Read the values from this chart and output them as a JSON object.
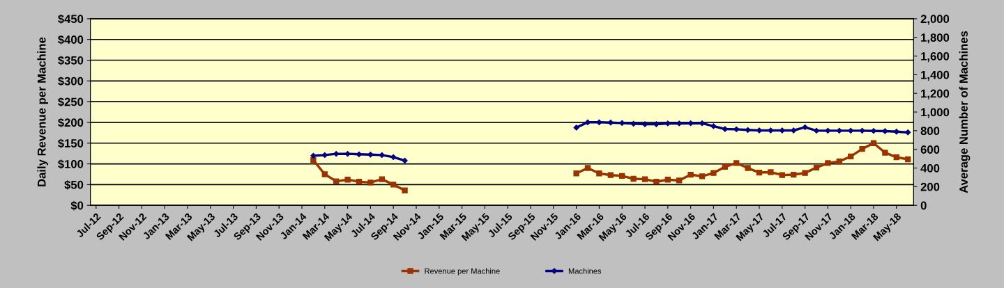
{
  "chart_data": {
    "type": "line",
    "ylabel": "Daily Revenue per Machine",
    "y2label": "Average Number of Machines",
    "categories": [
      "Jul-12",
      null,
      "Sep-12",
      null,
      "Nov-12",
      null,
      "Jan-13",
      null,
      "Mar-13",
      null,
      "May-13",
      null,
      "Jul-13",
      null,
      "Sep-13",
      null,
      "Nov-13",
      null,
      "Jan-14",
      null,
      "Mar-14",
      null,
      "May-14",
      null,
      "Jul-14",
      null,
      "Sep-14",
      null,
      "Nov-14",
      null,
      "Jan-15",
      null,
      "Mar-15",
      null,
      "May-15",
      null,
      "Jul-15",
      null,
      "Sep-15",
      null,
      "Nov-15",
      null,
      "Jan-16",
      null,
      "Mar-16",
      null,
      "May-16",
      null,
      "Jul-16",
      null,
      "Sep-16",
      null,
      "Nov-16",
      null,
      "Jan-17",
      null,
      "Mar-17",
      null,
      "May-17",
      null,
      "Jul-17",
      null,
      "Sep-17",
      null,
      "Nov-17",
      null,
      "Jan-18",
      null,
      "Mar-18",
      null,
      "May-18",
      null
    ],
    "series": [
      {
        "name": "Revenue per Machine",
        "color": "#993300",
        "marker": "square",
        "values": [
          null,
          null,
          null,
          null,
          null,
          null,
          null,
          null,
          null,
          null,
          null,
          null,
          null,
          null,
          null,
          null,
          null,
          null,
          null,
          109,
          75,
          58,
          62,
          57,
          55,
          63,
          50,
          36,
          null,
          null,
          null,
          null,
          null,
          null,
          null,
          null,
          null,
          null,
          null,
          null,
          null,
          null,
          77,
          90,
          77,
          73,
          71,
          64,
          63,
          57,
          62,
          60,
          74,
          70,
          78,
          93,
          102,
          90,
          79,
          80,
          73,
          74,
          78,
          91,
          102,
          106,
          118,
          136,
          150,
          127,
          116,
          111
        ]
      },
      {
        "name": "Machines",
        "color": "#000080",
        "marker": "diamond",
        "axis": "y2",
        "values": [
          null,
          null,
          null,
          null,
          null,
          null,
          null,
          null,
          null,
          null,
          null,
          null,
          null,
          null,
          null,
          null,
          null,
          null,
          null,
          532,
          539,
          552,
          552,
          547,
          544,
          539,
          517,
          479,
          null,
          null,
          null,
          null,
          null,
          null,
          null,
          null,
          null,
          null,
          null,
          null,
          null,
          null,
          833,
          890,
          890,
          887,
          882,
          875,
          870,
          870,
          878,
          878,
          880,
          880,
          848,
          818,
          815,
          808,
          803,
          803,
          803,
          803,
          837,
          800,
          800,
          800,
          800,
          800,
          798,
          795,
          790,
          782
        ]
      }
    ],
    "ylim": [
      0,
      450
    ],
    "yticks": [
      {
        "value": 0,
        "label": "$0"
      },
      {
        "value": 50,
        "label": "$50"
      },
      {
        "value": 100,
        "label": "$100"
      },
      {
        "value": 150,
        "label": "$150"
      },
      {
        "value": 200,
        "label": "$200"
      },
      {
        "value": 250,
        "label": "$250"
      },
      {
        "value": 300,
        "label": "$300"
      },
      {
        "value": 350,
        "label": "$350"
      },
      {
        "value": 400,
        "label": "$400"
      },
      {
        "value": 450,
        "label": "$450"
      }
    ],
    "y2lim": [
      0,
      2000
    ],
    "y2ticks": [
      0,
      200,
      400,
      600,
      800,
      {
        "value": 1000,
        "label": "1,000"
      },
      {
        "value": 1200,
        "label": "1,200"
      },
      {
        "value": 1400,
        "label": "1,400"
      },
      {
        "value": 1600,
        "label": "1,600"
      },
      {
        "value": 1800,
        "label": "1,800"
      },
      {
        "value": 2000,
        "label": "2,000"
      }
    ],
    "grid": "y",
    "legend": "bottom",
    "line_style": "solid"
  }
}
